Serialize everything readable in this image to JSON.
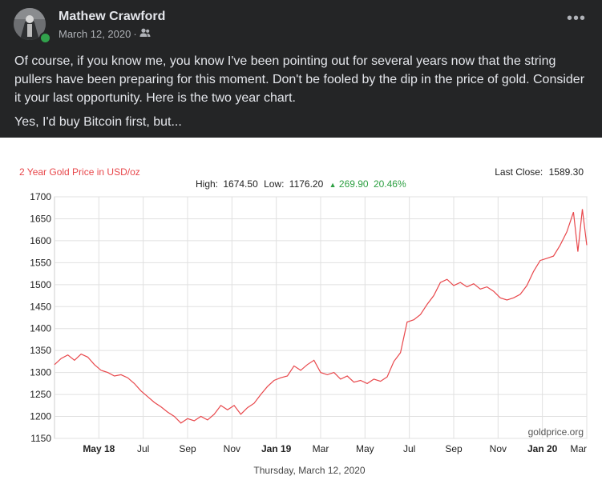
{
  "post": {
    "author": "Mathew Crawford",
    "date": "March 12, 2020",
    "separator": "·",
    "audience_icon": "friends-icon",
    "more_label": "•••",
    "paragraphs": [
      "Of course, if you know me, you know I've been pointing out for several years now that the string pullers have been preparing for this moment. Don't be fooled by the dip in the price of gold. Consider it your last opportunity. Here is the two year chart.",
      "Yes, I'd buy Bitcoin first, but..."
    ]
  },
  "chart_data": {
    "type": "line",
    "title": "2 Year Gold Price in USD/oz",
    "stats": {
      "high_label": "High:",
      "high": "1674.50",
      "low_label": "Low:",
      "low": "1176.20",
      "change_arrow": "▲",
      "change": "269.90",
      "change_pct": "20.46%"
    },
    "last_close_label": "Last Close:",
    "last_close": "1589.30",
    "watermark": "goldprice.org",
    "date_caption": "Thursday, March 12, 2020",
    "ylim": [
      1150,
      1700
    ],
    "yticks": [
      1700,
      1650,
      1600,
      1550,
      1500,
      1450,
      1400,
      1350,
      1300,
      1250,
      1200,
      1150
    ],
    "xlim": [
      0,
      24
    ],
    "xticks": [
      {
        "label": "May 18",
        "x": 2,
        "bold": true
      },
      {
        "label": "Jul",
        "x": 4,
        "bold": false
      },
      {
        "label": "Sep",
        "x": 6,
        "bold": false
      },
      {
        "label": "Nov",
        "x": 8,
        "bold": false
      },
      {
        "label": "Jan 19",
        "x": 10,
        "bold": true
      },
      {
        "label": "Mar",
        "x": 12,
        "bold": false
      },
      {
        "label": "May",
        "x": 14,
        "bold": false
      },
      {
        "label": "Jul",
        "x": 16,
        "bold": false
      },
      {
        "label": "Sep",
        "x": 18,
        "bold": false
      },
      {
        "label": "Nov",
        "x": 20,
        "bold": false
      },
      {
        "label": "Jan 20",
        "x": 22,
        "bold": true
      },
      {
        "label": "Mar",
        "x": 24,
        "bold": false
      }
    ],
    "series": [
      {
        "name": "Gold Price",
        "color": "#e8474b",
        "x": [
          0,
          0.3,
          0.6,
          0.9,
          1.2,
          1.5,
          1.8,
          2.1,
          2.4,
          2.7,
          3.0,
          3.3,
          3.6,
          3.9,
          4.2,
          4.5,
          4.8,
          5.1,
          5.4,
          5.7,
          6.0,
          6.3,
          6.6,
          6.9,
          7.2,
          7.5,
          7.8,
          8.1,
          8.4,
          8.7,
          9.0,
          9.3,
          9.6,
          9.9,
          10.2,
          10.5,
          10.8,
          11.1,
          11.4,
          11.7,
          12.0,
          12.3,
          12.6,
          12.9,
          13.2,
          13.5,
          13.8,
          14.1,
          14.4,
          14.7,
          15.0,
          15.3,
          15.6,
          15.9,
          16.2,
          16.5,
          16.8,
          17.1,
          17.4,
          17.7,
          18.0,
          18.3,
          18.6,
          18.9,
          19.2,
          19.5,
          19.8,
          20.1,
          20.4,
          20.7,
          21.0,
          21.3,
          21.6,
          21.9,
          22.2,
          22.5,
          22.8,
          23.1,
          23.4,
          23.6,
          23.8,
          24.0
        ],
        "values": [
          1318,
          1332,
          1340,
          1328,
          1342,
          1335,
          1318,
          1305,
          1300,
          1292,
          1295,
          1288,
          1275,
          1258,
          1245,
          1232,
          1222,
          1210,
          1200,
          1185,
          1195,
          1190,
          1200,
          1192,
          1205,
          1225,
          1215,
          1225,
          1205,
          1220,
          1230,
          1250,
          1268,
          1282,
          1288,
          1292,
          1315,
          1305,
          1318,
          1328,
          1300,
          1295,
          1300,
          1285,
          1292,
          1278,
          1282,
          1275,
          1285,
          1280,
          1290,
          1325,
          1345,
          1415,
          1420,
          1432,
          1455,
          1475,
          1505,
          1512,
          1498,
          1505,
          1495,
          1502,
          1490,
          1495,
          1485,
          1470,
          1465,
          1470,
          1478,
          1498,
          1530,
          1555,
          1560,
          1565,
          1590,
          1620,
          1665,
          1575,
          1672,
          1590
        ]
      }
    ]
  }
}
